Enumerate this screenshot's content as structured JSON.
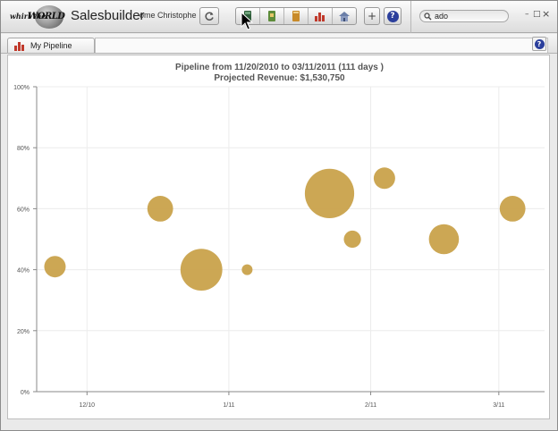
{
  "app": {
    "logo_text_whirl": "whirl the",
    "logo_text_world": "WORLD",
    "title": "Salesbuilder",
    "user_name": "ome Christophe"
  },
  "toolbar": {
    "refresh_icon": "refresh-icon",
    "buttons": [
      {
        "name": "pipeline-view-button",
        "icon": "funnel-icon"
      },
      {
        "name": "accounts-button",
        "icon": "book-green-icon"
      },
      {
        "name": "contacts-button",
        "icon": "book-orange-icon"
      },
      {
        "name": "reports-button",
        "icon": "bar-chart-icon"
      },
      {
        "name": "home-button",
        "icon": "home-icon"
      }
    ],
    "add_label": "+",
    "help_label": "?"
  },
  "search": {
    "value": "ado"
  },
  "window_controls": {
    "minimize": "–",
    "maximize": "□",
    "close": "×"
  },
  "tabs": [
    {
      "label": "My Pipeline",
      "icon": "bar-chart-icon"
    }
  ],
  "chart_data": {
    "type": "scatter",
    "subtype": "bubble",
    "title": "Pipeline from  11/20/2010 to 03/11/2011 (111 days )",
    "subtitle": "Projected Revenue:  $1,530,750",
    "xlabel": "",
    "ylabel": "",
    "x_ticks": [
      "12/10",
      "1/11",
      "2/11",
      "3/11"
    ],
    "x_tick_dates": [
      "2010-12-01",
      "2011-01-01",
      "2011-02-01",
      "2011-03-01"
    ],
    "xlim": [
      "2010-11-20",
      "2011-03-11"
    ],
    "y_ticks": [
      "0%",
      "20%",
      "40%",
      "60%",
      "80%",
      "100%"
    ],
    "ylim": [
      0,
      100
    ],
    "grid": true,
    "bubble_color": "#c9a24b",
    "points": [
      {
        "x": "2010-11-24",
        "y": 41,
        "size": 1.0
      },
      {
        "x": "2010-12-17",
        "y": 60,
        "size": 1.2
      },
      {
        "x": "2010-12-26",
        "y": 40,
        "size": 1.95
      },
      {
        "x": "2011-01-05",
        "y": 40,
        "size": 0.5
      },
      {
        "x": "2011-01-23",
        "y": 65,
        "size": 2.3
      },
      {
        "x": "2011-01-28",
        "y": 50,
        "size": 0.8
      },
      {
        "x": "2011-02-04",
        "y": 70,
        "size": 1.0
      },
      {
        "x": "2011-02-17",
        "y": 50,
        "size": 1.4
      },
      {
        "x": "2011-03-04",
        "y": 60,
        "size": 1.2
      }
    ]
  }
}
